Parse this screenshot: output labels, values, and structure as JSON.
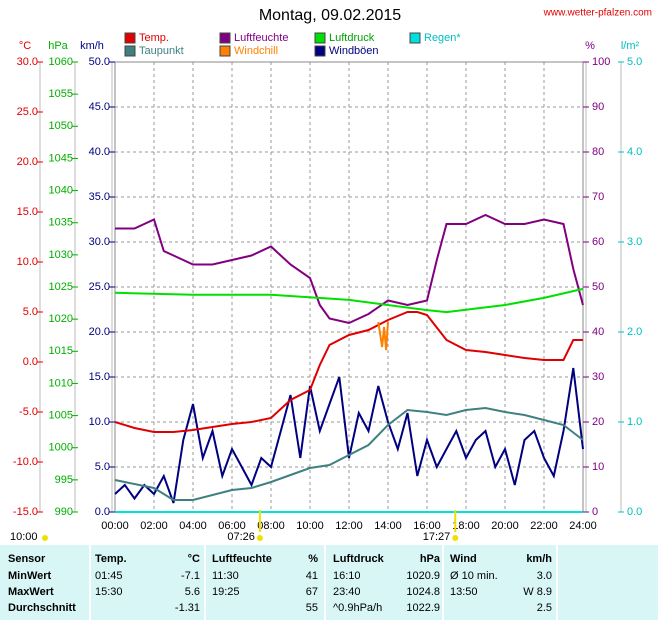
{
  "chart_data": {
    "type": "line",
    "title": "Montag, 09.02.2015",
    "source": "www.wetter-pfalzen.com",
    "grid": true,
    "xlim": [
      0,
      24
    ],
    "xticks": [
      {
        "value": 0,
        "label": "00:00"
      },
      {
        "value": 2,
        "label": "02:00"
      },
      {
        "value": 4,
        "label": "04:00"
      },
      {
        "value": 6,
        "label": "06:00"
      },
      {
        "value": 8,
        "label": "08:00"
      },
      {
        "value": 10,
        "label": "10:00"
      },
      {
        "value": 12,
        "label": "12:00"
      },
      {
        "value": 14,
        "label": "14:00"
      },
      {
        "value": 16,
        "label": "16:00"
      },
      {
        "value": 18,
        "label": "18:00"
      },
      {
        "value": 20,
        "label": "20:00"
      },
      {
        "value": 22,
        "label": "22:00"
      },
      {
        "value": 24,
        "label": "24:00"
      }
    ],
    "axes": [
      {
        "label": "°C",
        "color": "#e00000",
        "side": "left",
        "lim": [
          -15,
          30
        ],
        "ticks": [
          {
            "value": 30,
            "label": "30.0"
          },
          {
            "value": 25,
            "label": "25.0"
          },
          {
            "value": 20,
            "label": "20.0"
          },
          {
            "value": 15,
            "label": "15.0"
          },
          {
            "value": 10,
            "label": "10.0"
          },
          {
            "value": 5,
            "label": "5.0"
          },
          {
            "value": 0,
            "label": "0.0"
          },
          {
            "value": -5,
            "label": "-5.0"
          },
          {
            "value": -10,
            "label": "-10.0"
          },
          {
            "value": -15,
            "label": "-15.0"
          }
        ]
      },
      {
        "label": "hPa",
        "color": "#00b000",
        "side": "left",
        "lim": [
          990,
          1060
        ],
        "ticks": [
          990,
          995,
          1000,
          1005,
          1010,
          1015,
          1020,
          1025,
          1030,
          1035,
          1040,
          1045,
          1050,
          1055,
          1060
        ]
      },
      {
        "label": "km/h",
        "color": "#000080",
        "side": "left",
        "lim": [
          0,
          50
        ],
        "ticks": [
          {
            "value": 0,
            "label": "0.0"
          },
          {
            "value": 5,
            "label": "5.0"
          },
          {
            "value": 10,
            "label": "10.0"
          },
          {
            "value": 15,
            "label": "15.0"
          },
          {
            "value": 20,
            "label": "20.0"
          },
          {
            "value": 25,
            "label": "25.0"
          },
          {
            "value": 30,
            "label": "30.0"
          },
          {
            "value": 35,
            "label": "35.0"
          },
          {
            "value": 40,
            "label": "40.0"
          },
          {
            "value": 45,
            "label": "45.0"
          },
          {
            "value": 50,
            "label": "50.0"
          }
        ]
      },
      {
        "label": "%",
        "color": "#800080",
        "side": "right",
        "lim": [
          0,
          100
        ],
        "ticks": [
          0,
          10,
          20,
          30,
          40,
          50,
          60,
          70,
          80,
          90,
          100
        ]
      },
      {
        "label": "l/m²",
        "color": "#00c0c0",
        "side": "right",
        "lim": [
          0,
          5
        ],
        "ticks": [
          {
            "value": 0,
            "label": "0.0"
          },
          {
            "value": 1,
            "label": "1.0"
          },
          {
            "value": 2,
            "label": "2.0"
          },
          {
            "value": 3,
            "label": "3.0"
          },
          {
            "value": 4,
            "label": "4.0"
          },
          {
            "value": 5,
            "label": "5.0"
          }
        ]
      }
    ],
    "series": [
      {
        "name": "Windböen",
        "color": "#000080",
        "axis": 2,
        "x": [
          0,
          0.5,
          1,
          1.5,
          2,
          2.5,
          3,
          3.5,
          4,
          4.5,
          5,
          5.5,
          6,
          6.5,
          7,
          7.5,
          8,
          8.5,
          9,
          9.5,
          10,
          10.5,
          11,
          11.5,
          12,
          12.5,
          13,
          13.5,
          14,
          14.5,
          15,
          15.5,
          16,
          16.5,
          17,
          17.5,
          18,
          18.5,
          19,
          19.5,
          20,
          20.5,
          21,
          21.5,
          22,
          22.5,
          23,
          23.5,
          24
        ],
        "values": [
          2,
          3,
          1.5,
          3,
          2,
          4,
          1,
          8,
          12,
          6,
          9,
          4,
          7,
          5,
          3,
          6,
          5,
          9,
          13,
          6,
          14,
          9,
          12,
          15,
          6,
          11,
          9,
          14,
          10,
          7,
          11,
          4,
          8,
          5,
          7,
          9,
          6,
          8,
          9,
          5,
          7,
          3,
          8,
          9,
          6,
          4,
          9,
          16,
          7
        ]
      },
      {
        "name": "Luftfeuchte",
        "color": "#800080",
        "axis": 3,
        "x": [
          0,
          1,
          2,
          2.5,
          3,
          4,
          5,
          6,
          7,
          8,
          9,
          10,
          10.5,
          11,
          12,
          13,
          14,
          15,
          16,
          16.5,
          17,
          18,
          19,
          20,
          21,
          22,
          23,
          23.5,
          24
        ],
        "values": [
          63,
          63,
          65,
          58,
          57,
          55,
          55,
          56,
          57,
          59,
          55,
          52,
          46,
          43,
          42,
          44,
          47,
          46,
          47,
          56,
          64,
          64,
          66,
          64,
          64,
          65,
          64,
          54,
          46
        ]
      },
      {
        "name": "Luftdruck",
        "color": "#00e000",
        "axis": 1,
        "x": [
          0,
          4,
          8,
          12,
          16,
          17,
          20,
          22,
          24
        ],
        "values": [
          1024.1,
          1023.8,
          1023.8,
          1023.0,
          1021.4,
          1021.1,
          1022.2,
          1023.3,
          1024.7
        ]
      },
      {
        "name": "Taupunkt",
        "color": "#408080",
        "axis": 0,
        "x": [
          0,
          2,
          3,
          4,
          5,
          6,
          7,
          8,
          9,
          10,
          11,
          12,
          13,
          14,
          15,
          16,
          17,
          18,
          19,
          20,
          21,
          22,
          23,
          24
        ],
        "values": [
          -11.8,
          -12.6,
          -13.8,
          -13.8,
          -13.3,
          -12.8,
          -12.6,
          -12.0,
          -11.3,
          -10.6,
          -10.3,
          -9.3,
          -8.3,
          -6.3,
          -4.8,
          -5.0,
          -5.3,
          -4.8,
          -4.6,
          -5.0,
          -5.3,
          -5.8,
          -6.3,
          -7.8
        ]
      },
      {
        "name": "Temp.",
        "color": "#e00000",
        "axis": 0,
        "x": [
          0,
          1,
          2,
          3,
          4,
          5,
          6,
          7,
          8,
          9,
          10,
          10.5,
          11,
          12,
          13,
          14,
          15,
          15.5,
          16,
          17,
          18,
          19,
          20,
          21,
          22,
          23,
          23.5,
          24
        ],
        "values": [
          -6.0,
          -6.6,
          -7.0,
          -7.0,
          -6.8,
          -6.5,
          -6.2,
          -6.0,
          -5.6,
          -3.8,
          -2.8,
          -0.3,
          1.7,
          2.7,
          3.2,
          4.2,
          5.0,
          5.0,
          4.7,
          2.2,
          1.2,
          1.0,
          0.7,
          0.4,
          0.2,
          0.2,
          2.2,
          2.2
        ]
      },
      {
        "name": "Windchill",
        "color": "#ff8000",
        "axis": 0,
        "x": [
          13.5,
          13.7,
          13.8,
          13.9,
          14.0
        ],
        "values": [
          4,
          1.5,
          3.5,
          1.2,
          4
        ]
      },
      {
        "name": "Regen*",
        "color": "#00e0e0",
        "axis": 4,
        "x": [
          0,
          24
        ],
        "values": [
          0,
          0
        ]
      }
    ],
    "legend_order": [
      "Temp.",
      "Luftfeuchte",
      "Luftdruck",
      "Regen*",
      "Taupunkt",
      "Windchill",
      "Windböen"
    ],
    "note": "10:00",
    "annotations": [
      {
        "x": 7.43,
        "label": "07:26"
      },
      {
        "x": 17.45,
        "label": "17:27"
      }
    ]
  },
  "table": {
    "header": [
      "Sensor",
      "Temp.",
      "°C",
      "Luftfeuchte",
      "%",
      "Luftdruck",
      "hPa",
      "Wind",
      "km/h"
    ],
    "rows": [
      [
        "MinWert",
        "01:45",
        "-7.1",
        "11:30",
        "41",
        "16:10",
        "1020.9",
        "Ø 10 min.",
        "3.0"
      ],
      [
        "MaxWert",
        "15:30",
        "5.6",
        "19:25",
        "67",
        "23:40",
        "1024.8",
        "13:50",
        "W 8.9"
      ],
      [
        "Durchschnitt",
        null,
        "-1.31",
        null,
        "55",
        "^0.9hPa/h",
        "1022.9",
        null,
        "2.5"
      ]
    ]
  }
}
